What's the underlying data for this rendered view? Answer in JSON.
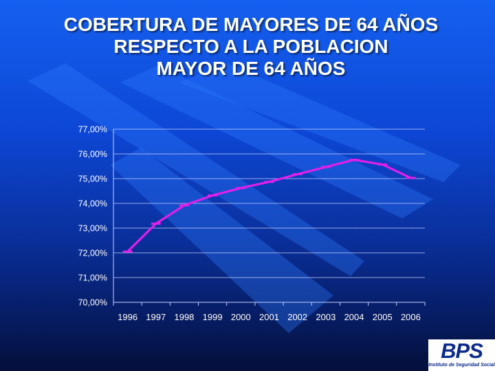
{
  "title_lines": [
    "COBERTURA DE MAYORES DE 64 AÑOS",
    "RESPECTO A LA POBLACION",
    "MAYOR DE 64 AÑOS"
  ],
  "logo": {
    "text": "BPS",
    "subtitle": "Instituto de Seguridad Social"
  },
  "colors": {
    "line": "#e020e8",
    "axis_text": "#ffffff",
    "grid": "#c8d2ff"
  },
  "chart_data": {
    "type": "line",
    "x": [
      "1996",
      "1997",
      "1998",
      "1999",
      "2000",
      "2001",
      "2002",
      "2003",
      "2004",
      "2005",
      "2006"
    ],
    "series": [
      {
        "values": [
          72.05,
          73.18,
          73.92,
          74.32,
          74.62,
          74.87,
          75.18,
          75.47,
          75.76,
          75.57,
          75.03
        ]
      }
    ],
    "ylim": [
      70,
      77
    ],
    "yticks": [
      "70,00%",
      "71,00%",
      "72,00%",
      "73,00%",
      "74,00%",
      "75,00%",
      "76,00%",
      "77,00%"
    ],
    "grid": true,
    "legend": false
  }
}
